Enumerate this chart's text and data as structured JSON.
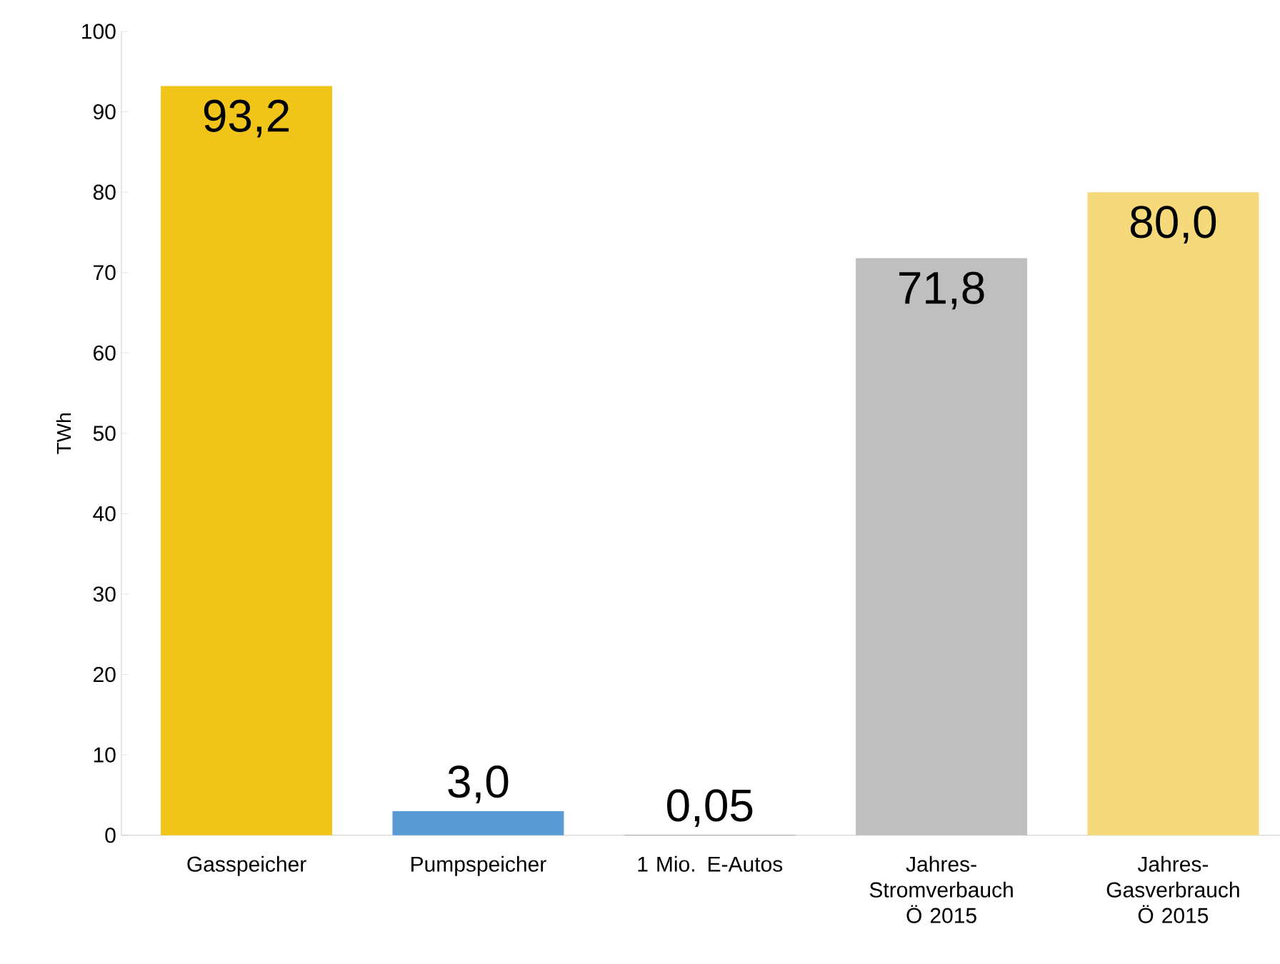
{
  "chart_data": {
    "type": "bar",
    "ylabel": "TWh",
    "categories": [
      "Gasspeicher",
      "Pumpspeicher",
      "1 Mio. E-Autos",
      "Jahres-Stromverbauch Ö 2015",
      "Jahres-Gasverbrauch Ö 2015"
    ],
    "values": [
      93.2,
      3.0,
      0.05,
      71.8,
      80.0
    ],
    "value_labels": [
      "93,2",
      "3,0",
      "0,05",
      "71,8",
      "80,0"
    ],
    "colors": [
      "#f0c419",
      "#5b9bd5",
      "#7f7f7f",
      "#bfbfbf",
      "#f5d97a"
    ],
    "ylim": [
      0,
      100
    ],
    "yticks": [
      0,
      10,
      20,
      30,
      40,
      50,
      60,
      70,
      80,
      90,
      100
    ]
  }
}
